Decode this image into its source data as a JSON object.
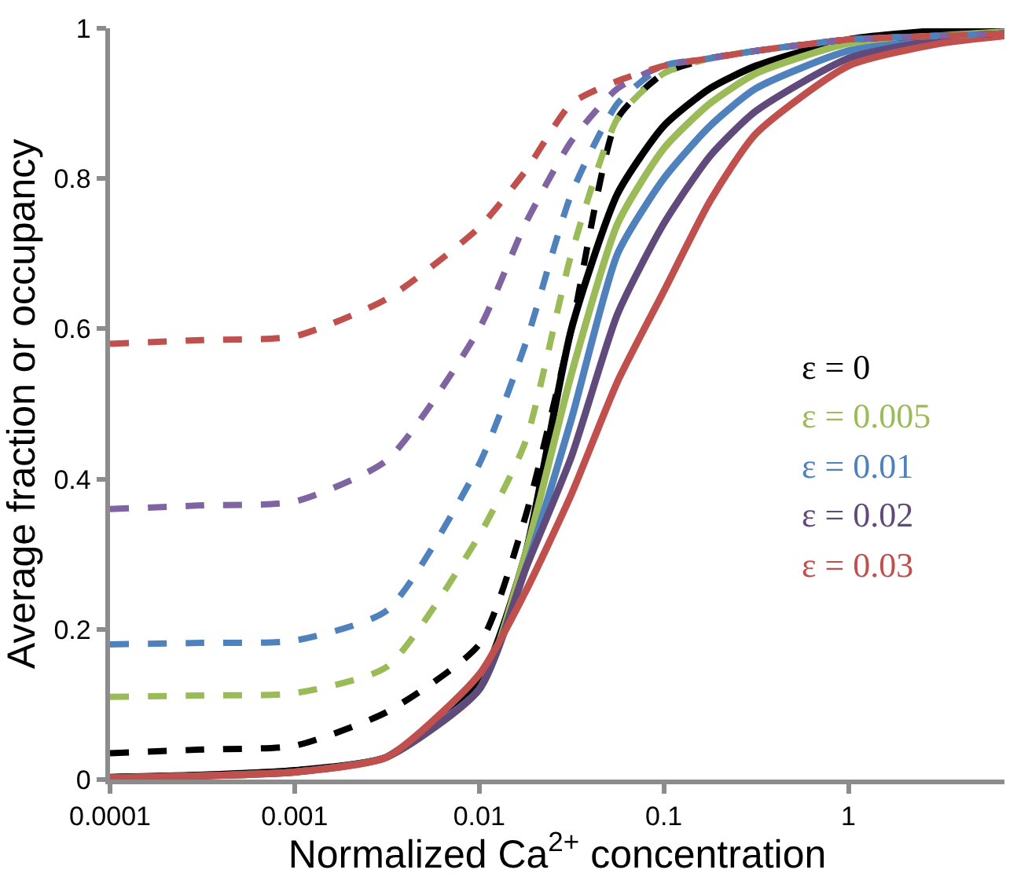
{
  "chart_data": {
    "type": "line",
    "xlabel": "Normalized Ca$^{2+}$ concentration",
    "ylabel": "Average fraction or occupancy",
    "log": "x",
    "xlim": [
      0.0001,
      7
    ],
    "xticks": [
      0.0001,
      0.001,
      0.01,
      0.1,
      1
    ],
    "ylim": [
      0,
      1
    ],
    "yticks": [
      0,
      0.2,
      0.4,
      0.6,
      0.8,
      1
    ],
    "legend": "right",
    "marker": "none",
    "x": [
      0.0001,
      0.000316,
      0.001,
      0.00316,
      0.01,
      0.0178,
      0.0316,
      0.0562,
      0.1,
      0.178,
      0.316,
      1,
      3.16,
      7
    ],
    "series": [
      {
        "name": "ε = 0",
        "color": "#000000",
        "line_style": "solid",
        "values": [
          0.003,
          0.006,
          0.012,
          0.03,
          0.13,
          0.3,
          0.6,
          0.78,
          0.87,
          0.92,
          0.95,
          0.985,
          0.997,
          1.0
        ]
      },
      {
        "name": "ε = 0.005",
        "color": "#9bbb59",
        "line_style": "solid",
        "values": [
          0.002,
          0.005,
          0.01,
          0.03,
          0.12,
          0.3,
          0.54,
          0.74,
          0.84,
          0.9,
          0.94,
          0.98,
          0.99,
          0.995
        ]
      },
      {
        "name": "ε = 0.01",
        "color": "#4f81bd",
        "line_style": "solid",
        "values": [
          null,
          null,
          null,
          0.03,
          0.12,
          0.28,
          0.48,
          0.7,
          0.8,
          0.87,
          0.92,
          0.97,
          0.985,
          0.993
        ]
      },
      {
        "name": "ε = 0.02",
        "color": "#604a7b",
        "line_style": "solid",
        "values": [
          0.002,
          0.005,
          0.01,
          0.03,
          0.12,
          0.28,
          0.43,
          0.62,
          0.74,
          0.83,
          0.89,
          0.96,
          0.985,
          0.993
        ]
      },
      {
        "name": "ε = 0.03",
        "color": "#c0504d",
        "line_style": "solid",
        "values": [
          0.002,
          0.005,
          0.01,
          0.03,
          0.14,
          0.25,
          0.38,
          0.53,
          0.65,
          0.77,
          0.86,
          0.95,
          0.98,
          0.99
        ]
      },
      {
        "color": "#000000",
        "line_style": "dashed",
        "values": [
          0.035,
          0.04,
          0.045,
          0.09,
          0.18,
          0.35,
          0.6,
          0.88,
          0.94,
          0.96,
          0.97,
          0.985,
          0.99,
          0.993
        ]
      },
      {
        "color": "#9bbb59",
        "line_style": "dashed",
        "values": [
          0.11,
          0.112,
          0.115,
          0.15,
          0.325,
          0.45,
          0.7,
          0.88,
          0.94,
          0.96,
          0.97,
          0.985,
          0.99,
          0.993
        ]
      },
      {
        "color": "#4f81bd",
        "line_style": "dashed",
        "values": [
          0.18,
          0.182,
          0.185,
          0.225,
          0.42,
          0.58,
          0.78,
          0.9,
          0.95,
          0.96,
          0.97,
          0.985,
          0.99,
          0.993
        ]
      },
      {
        "color": "#8064a2",
        "line_style": "dashed",
        "values": [
          0.36,
          0.365,
          0.37,
          0.425,
          0.6,
          0.74,
          0.85,
          0.92,
          0.95,
          0.96,
          0.97,
          0.985,
          0.99,
          0.993
        ]
      },
      {
        "color": "#c0504d",
        "line_style": "dashed",
        "values": [
          0.58,
          0.585,
          0.59,
          0.64,
          0.735,
          0.81,
          0.9,
          0.93,
          0.95,
          0.96,
          0.97,
          0.985,
          0.99,
          0.993
        ]
      }
    ]
  }
}
